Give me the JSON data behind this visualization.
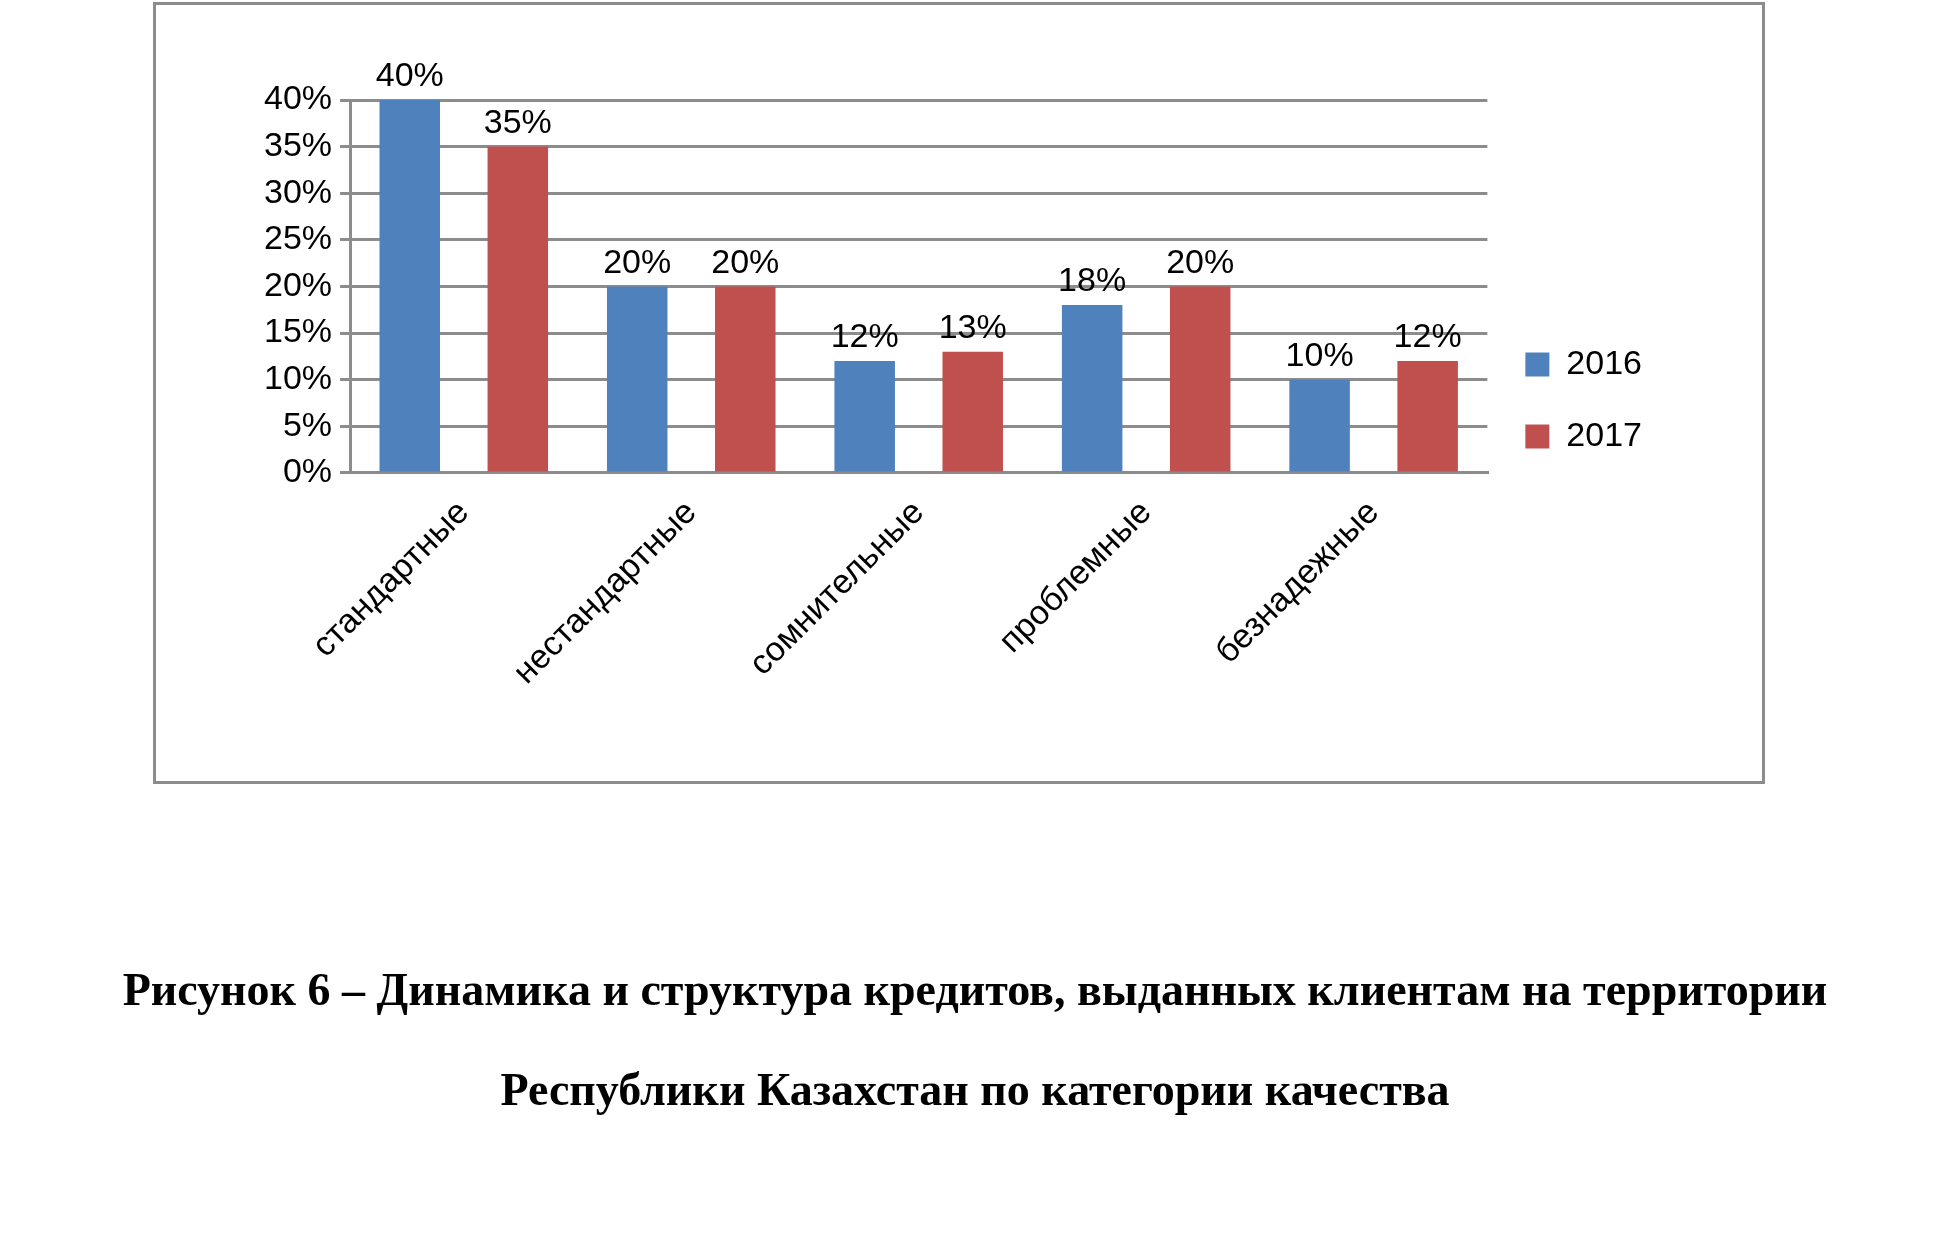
{
  "chart_data": {
    "type": "bar",
    "categories": [
      "стандартные",
      "нестандартные",
      "сомнительные",
      "проблемные",
      "безнадежные"
    ],
    "series": [
      {
        "name": "2016",
        "color": "#4f81bd",
        "values": [
          40,
          20,
          12,
          18,
          10
        ],
        "value_labels": [
          "40%",
          "20%",
          "12%",
          "18%",
          "10%"
        ]
      },
      {
        "name": "2017",
        "color": "#c0504d",
        "values": [
          35,
          20,
          13,
          20,
          12
        ],
        "value_labels": [
          "35%",
          "20%",
          "13%",
          "20%",
          "12%"
        ]
      }
    ],
    "ylim": [
      0,
      40
    ],
    "yticks": [
      {
        "value": 0,
        "label": "0%"
      },
      {
        "value": 5,
        "label": "5%"
      },
      {
        "value": 10,
        "label": "10%"
      },
      {
        "value": 15,
        "label": "15%"
      },
      {
        "value": 20,
        "label": "20%"
      },
      {
        "value": 25,
        "label": "25%"
      },
      {
        "value": 30,
        "label": "30%"
      },
      {
        "value": 35,
        "label": "35%"
      },
      {
        "value": 40,
        "label": "40%"
      }
    ],
    "grid": "y",
    "legend": "right",
    "annotations": [
      "Рисунок 6 – Динамика и структура кредитов, выданных клиентам на территории Республики Казахстан по категории качества"
    ]
  }
}
